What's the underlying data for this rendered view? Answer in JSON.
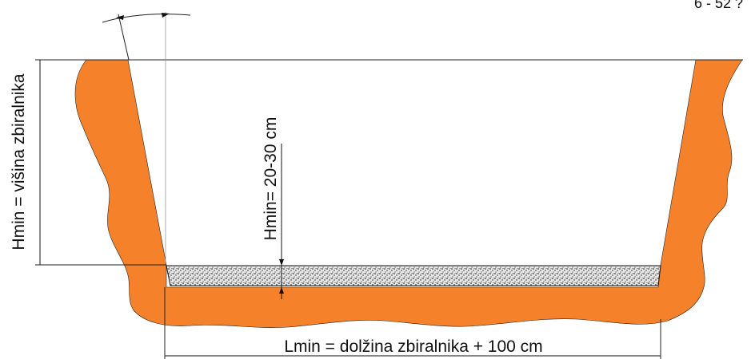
{
  "labels": {
    "height_label": "Hmin = višina zbiralnika",
    "gravel_label": "Hmin= 20-30 cm",
    "length_label": "Lmin = dolžina zbiralnika + 100 cm",
    "angle_label": "6 - 52 ?"
  },
  "colors": {
    "soil": "#f5822a",
    "gravel_fill": "#d9d9d9",
    "line": "#111111",
    "background": "#ffffff"
  }
}
